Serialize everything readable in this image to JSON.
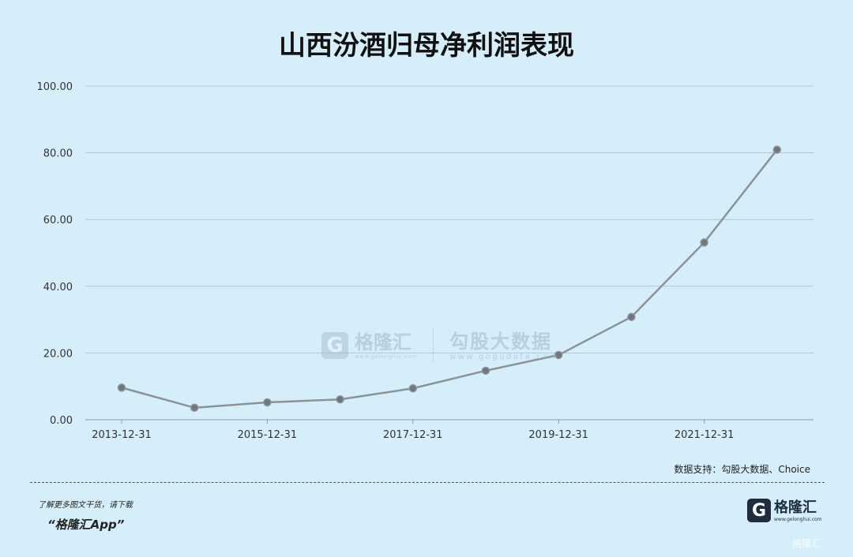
{
  "title": "山西汾酒归母净利润表现",
  "source": "数据支持：勾股大数据、Choice",
  "footer": {
    "note": "了解更多图文干货，请下载",
    "app": "“格隆汇App”"
  },
  "watermark": {
    "brand": "格隆汇",
    "brand_url": "www.gelonghui.com",
    "partner": "勾股大数据",
    "partner_url": "www.gogudata.com"
  },
  "logo": {
    "glyph": "G",
    "name": "格隆汇",
    "url": "www.gelonghui.com"
  },
  "corner_mark": "格隆汇",
  "colors": {
    "background": "#d6eef9",
    "line": "#8a9398",
    "point": "#6f777b",
    "grid": "#b4c6d2"
  },
  "chart_data": {
    "type": "line",
    "title": "山西汾酒归母净利润表现",
    "x": [
      "2013-12-31",
      "2014-12-31",
      "2015-12-31",
      "2016-12-31",
      "2017-12-31",
      "2018-12-31",
      "2019-12-31",
      "2020-12-31",
      "2021-12-31",
      "2022-12-31"
    ],
    "x_tick_labels": [
      "2013-12-31",
      "2015-12-31",
      "2017-12-31",
      "2019-12-31",
      "2021-12-31"
    ],
    "series": [
      {
        "values": [
          9.6,
          3.6,
          5.2,
          6.1,
          9.4,
          14.7,
          19.4,
          30.8,
          53.1,
          80.9
        ]
      }
    ],
    "ylim": [
      0,
      100
    ],
    "y_ticks": [
      "0.00",
      "20.00",
      "40.00",
      "60.00",
      "80.00",
      "100.00"
    ],
    "grid": true,
    "legend": "none"
  }
}
